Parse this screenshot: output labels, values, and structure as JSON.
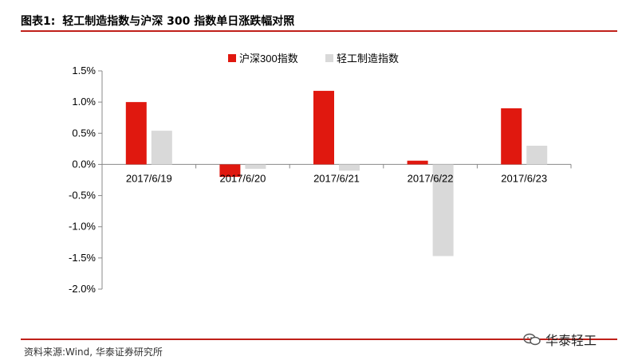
{
  "header": {
    "figure_label": "图表1:",
    "title": "轻工制造指数与沪深 300 指数单日涨跌幅对照"
  },
  "footer": {
    "source": "资料来源:Wind, 华泰证券研究所",
    "brand": "华泰轻工"
  },
  "colors": {
    "rule": "#c0201a",
    "series_red": "#e0180f",
    "series_gray": "#d9d9d9"
  },
  "chart_data": {
    "type": "bar",
    "categories": [
      "2017/6/19",
      "2017/6/20",
      "2017/6/21",
      "2017/6/22",
      "2017/6/23"
    ],
    "series": [
      {
        "name": "沪深300指数",
        "values": [
          1.0,
          -0.2,
          1.18,
          0.06,
          0.9
        ],
        "color": "#e0180f"
      },
      {
        "name": "轻工制造指数",
        "values": [
          0.54,
          -0.07,
          -0.1,
          -1.47,
          0.3
        ],
        "color": "#d9d9d9"
      }
    ],
    "yticks": [
      "1.5%",
      "1.0%",
      "0.5%",
      "0.0%",
      "-0.5%",
      "-1.0%",
      "-1.5%",
      "-2.0%"
    ],
    "ylim": [
      -2.0,
      1.5
    ],
    "legend_position": "top-center",
    "grid": false
  }
}
